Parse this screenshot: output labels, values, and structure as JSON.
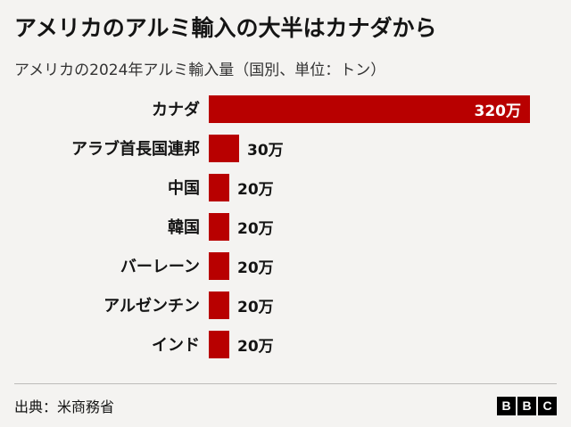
{
  "header": {
    "title": "アメリカのアルミ輸入の大半はカナダから",
    "subtitle": "アメリカの2024年アルミ輸入量（国別、単位：トン）"
  },
  "chart_data": {
    "type": "bar",
    "orientation": "horizontal",
    "title": "アメリカのアルミ輸入の大半はカナダから",
    "subtitle": "アメリカの2024年アルミ輸入量（国別、単位：トン）",
    "categories": [
      "カナダ",
      "アラブ首長国連邦",
      "中国",
      "韓国",
      "バーレーン",
      "アルゼンチン",
      "インド"
    ],
    "values": [
      320,
      30,
      20,
      20,
      20,
      20,
      20
    ],
    "value_labels": [
      "320万",
      "30万",
      "20万",
      "20万",
      "20万",
      "20万",
      "20万"
    ],
    "xlim": [
      0,
      320
    ],
    "bar_color": "#b80000",
    "grid": false,
    "legend": false
  },
  "footer": {
    "source": "出典：米商務省",
    "logo_letters": [
      "B",
      "B",
      "C"
    ]
  }
}
